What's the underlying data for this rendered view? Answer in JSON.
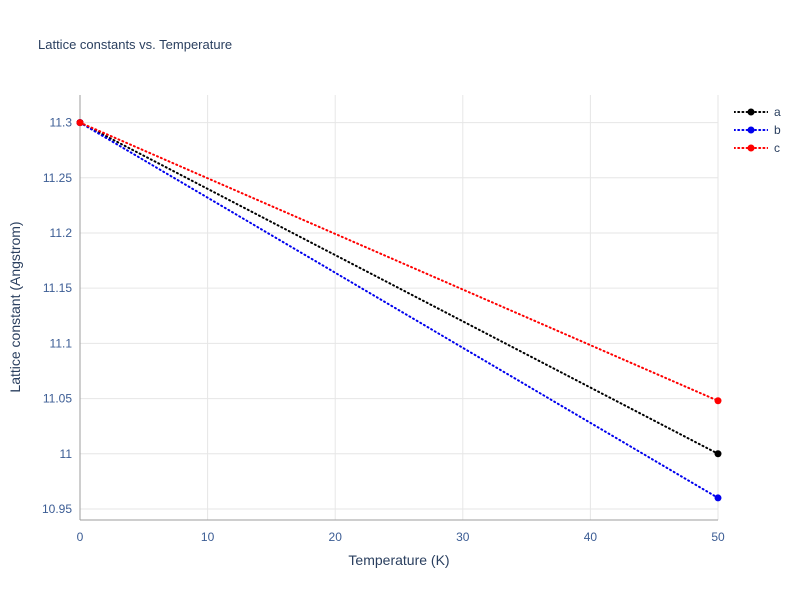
{
  "chart_data": {
    "type": "line",
    "title": "Lattice constants vs. Temperature",
    "xlabel": "Temperature (K)",
    "ylabel": "Lattice constant (Angstrom)",
    "xlim": [
      0,
      50
    ],
    "ylim": [
      10.94,
      11.325
    ],
    "x_ticks": [
      0,
      10,
      20,
      30,
      40,
      50
    ],
    "y_ticks": [
      10.95,
      11,
      11.05,
      11.1,
      11.15,
      11.2,
      11.25,
      11.3
    ],
    "grid": true,
    "legend_position": "top-right",
    "line_style": "dotted",
    "series": [
      {
        "name": "a",
        "color": "#000000",
        "x": [
          0,
          50
        ],
        "y": [
          11.3,
          11.0
        ]
      },
      {
        "name": "b",
        "color": "#0000ee",
        "x": [
          0,
          50
        ],
        "y": [
          11.3,
          10.96
        ]
      },
      {
        "name": "c",
        "color": "#ff0000",
        "x": [
          0,
          50
        ],
        "y": [
          11.3,
          11.048
        ]
      }
    ]
  }
}
